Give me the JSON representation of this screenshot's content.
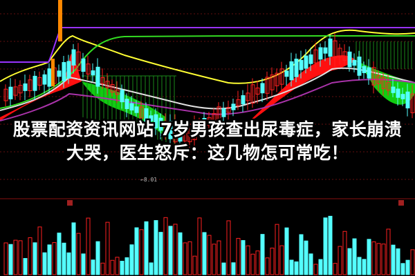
{
  "headline": {
    "line1": "股票配资资讯网站 7岁男孩查出尿毒症，家长崩溃",
    "line2": "大哭，医生怒斥：这几物怎可常吃！"
  },
  "chart": {
    "low_marker": "←8.01",
    "colors": {
      "background": "#000000",
      "up_candle": "#ff2020",
      "down_candle": "#54ffff",
      "ma_yellow": "#ffff33",
      "ma_green": "#33dd22",
      "ma_purple": "#9933ff",
      "ma_white": "#e0e0e0",
      "ribbon_red": "#ff1010",
      "ribbon_green": "#11cc11",
      "grid": "#661010"
    }
  }
}
